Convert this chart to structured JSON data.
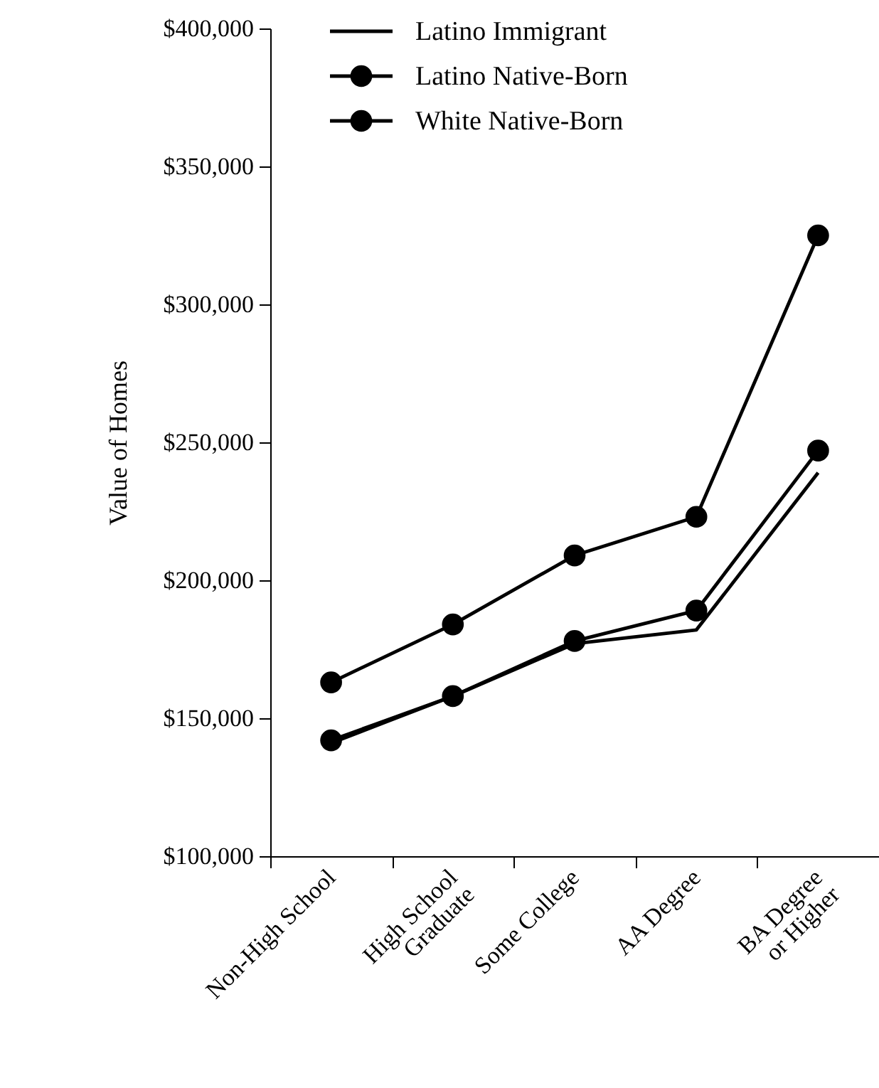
{
  "chart_data": {
    "type": "line",
    "ylabel": "Value of Homes",
    "categories": [
      "Non-High School",
      "High School\nGraduate",
      "Some College",
      "AA Degree",
      "BA Degree\nor Higher"
    ],
    "series": [
      {
        "name": "Latino Immigrant",
        "color": "#000000",
        "marker": "none",
        "values": [
          141000,
          158000,
          177000,
          182000,
          239000
        ]
      },
      {
        "name": "Latino Native-Born",
        "color": "#000000",
        "marker": "circle",
        "values": [
          142000,
          158000,
          178000,
          189000,
          247000
        ]
      },
      {
        "name": "White Native-Born",
        "color": "#000000",
        "marker": "circle",
        "values": [
          163000,
          184000,
          209000,
          223000,
          325000
        ]
      }
    ],
    "ylim": [
      100000,
      400000
    ],
    "yticks": [
      {
        "value": 100000,
        "label": "$100,000"
      },
      {
        "value": 150000,
        "label": "$150,000"
      },
      {
        "value": 200000,
        "label": "$200,000"
      },
      {
        "value": 250000,
        "label": "$250,000"
      },
      {
        "value": 300000,
        "label": "$300,000"
      },
      {
        "value": 350000,
        "label": "$350,000"
      },
      {
        "value": 400000,
        "label": "$400,000"
      }
    ],
    "grid": false,
    "legend": "top left"
  }
}
